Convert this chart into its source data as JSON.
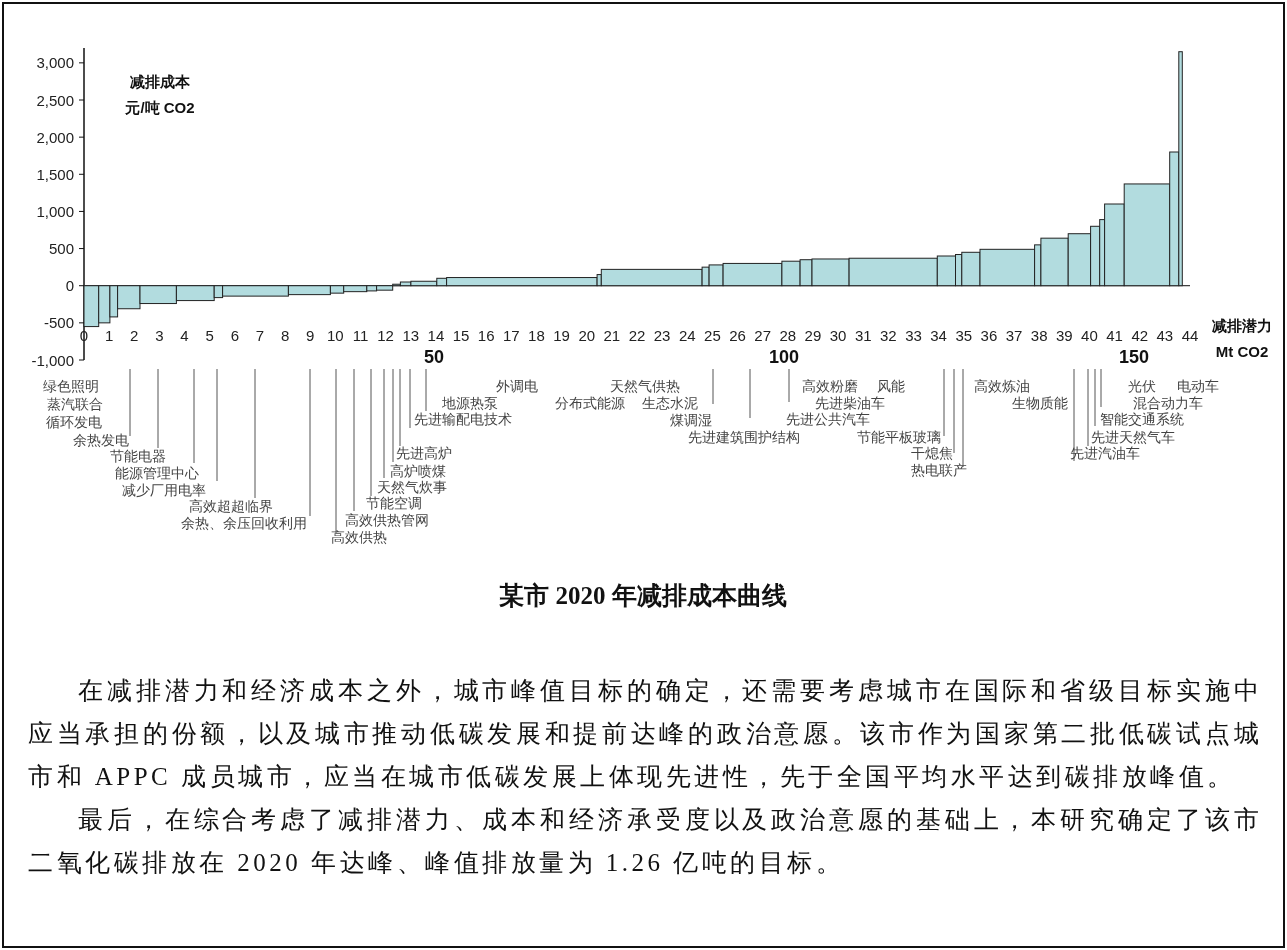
{
  "chart_data": {
    "type": "histogram",
    "title": "某市 2020 年减排成本曲线",
    "xlabel": "减排潜力 Mt CO2",
    "ylabel": "减排成本元/吨 CO2",
    "bins": [
      0,
      2.1,
      3.7,
      4.8,
      8.0,
      13.2,
      18.6,
      19.8,
      29.2,
      35.2,
      37.1,
      40.4,
      41.8,
      44.1,
      45.2,
      46.7,
      50.4,
      51.8,
      73.3,
      73.9,
      88.3,
      89.3,
      91.3,
      99.7,
      102.3,
      104.0,
      109.3,
      121.9,
      124.5,
      125.4,
      128.0,
      135.8,
      136.7,
      140.6,
      143.8,
      145.1,
      145.8,
      148.6,
      155.1,
      156.4,
      156.9
    ],
    "values": [
      -550,
      -500,
      -420,
      -310,
      -240,
      -200,
      -160,
      -140,
      -120,
      -100,
      -80,
      -70,
      -60,
      20,
      50,
      60,
      100,
      110,
      150,
      220,
      250,
      280,
      300,
      330,
      350,
      360,
      370,
      400,
      420,
      450,
      490,
      550,
      640,
      700,
      800,
      890,
      1100,
      1370,
      1800,
      3150
    ],
    "color": "#b2dcdf",
    "xlim": [
      0,
      158
    ],
    "xticks": [
      50,
      100,
      150
    ],
    "x2lim": [
      0,
      44
    ],
    "x2ticks": [
      0,
      1,
      2,
      3,
      4,
      5,
      6,
      7,
      8,
      9,
      10,
      11,
      12,
      13,
      14,
      15,
      16,
      17,
      18,
      19,
      20,
      21,
      22,
      23,
      24,
      25,
      26,
      27,
      28,
      29,
      30,
      31,
      32,
      33,
      34,
      35,
      36,
      37,
      38,
      39,
      40,
      41,
      42,
      43,
      44
    ],
    "ylim": [
      -1000,
      3200
    ],
    "yticks": [
      {
        "value": -1000,
        "label": "-1,000"
      },
      -500,
      0,
      500,
      {
        "value": 1000,
        "label": "1,000"
      },
      {
        "value": 1500,
        "label": "1,500"
      },
      {
        "value": 2000,
        "label": "2,000"
      },
      {
        "value": 2500,
        "label": "2,500"
      },
      {
        "value": 3000,
        "label": "3,000"
      }
    ],
    "annotations": [
      "绿色照明",
      "蒸汽联合",
      "循环发电",
      "余热发电",
      "节能电器",
      "能源管理中心",
      "减少厂用电率",
      "高效超超临界",
      "余热、余压回收利用",
      "高效供热",
      "高效供热管网",
      "节能空调",
      "天然气炊事",
      "高炉喷煤",
      "先进高炉",
      "先进输配电技术",
      "地源热泵",
      "外调电",
      "分布式能源",
      "天然气供热",
      "生态水泥",
      "煤调湿",
      "先进建筑围护结构",
      "高效粉磨",
      "风能",
      "先进柴油车",
      "先进公共汽车",
      "节能平板玻璃",
      "干熄焦",
      "热电联产",
      "高效炼油",
      "生物质能",
      "光伏",
      "电动车",
      "混合动力车",
      "智能交通系统",
      "先进天然气车",
      "先进汽油车",
      "在减排潜力和经济成本之外，城市峰值目标的确定，还需要考虑城市在国际和省级目标实施中应当承担的份额，以及城市推动低碳发展和提前达峰的政治意愿。该市作为国家第二批低碳试点城市和 APPC 成员城市，应当在城市低碳发展上体现先进性，先于全国平均水平达到碳排放峰值。",
      "最后，在综合考虑了减排潜力、成本和经济承受度以及政治意愿的基础上，本研究确定了该市二氧化碳排放在 2020 年达峰、峰值排放量为 1.26 亿吨的目标。"
    ]
  }
}
